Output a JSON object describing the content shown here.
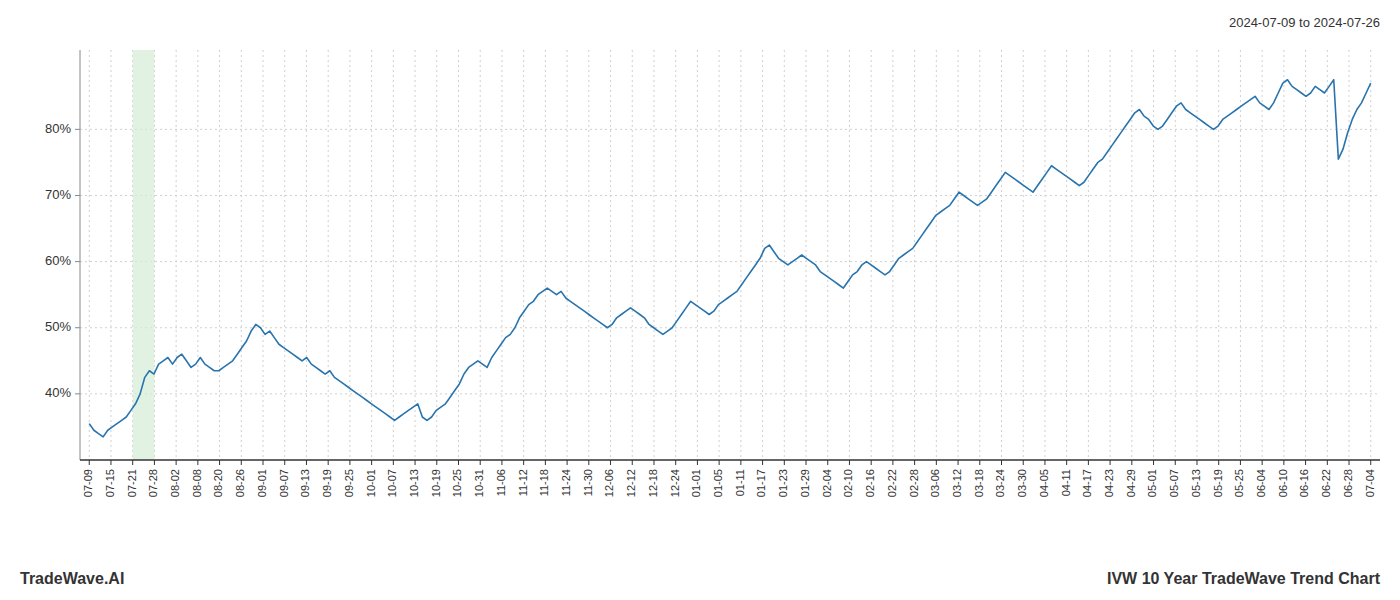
{
  "chart_data": {
    "type": "line",
    "title": "IVW 10 Year TradeWave Trend Chart",
    "subtitle": "2024-07-09 to 2024-07-26",
    "annotations": [
      "TradeWave.AI"
    ],
    "color": "#2874ae",
    "grid": true,
    "xlim": [
      -2,
      279
    ],
    "ylim": [
      30,
      92
    ],
    "yticks": [
      {
        "value": 40,
        "label": "40%"
      },
      {
        "value": 50,
        "label": "50%"
      },
      {
        "value": 60,
        "label": "60%"
      },
      {
        "value": 70,
        "label": "70%"
      },
      {
        "value": 80,
        "label": "80%"
      }
    ],
    "xticks": [
      {
        "value": 0,
        "label": "07-09"
      },
      {
        "value": 4.694915,
        "label": "07-15"
      },
      {
        "value": 9.389831,
        "label": "07-21"
      },
      {
        "value": 14.084746,
        "label": "07-28"
      },
      {
        "value": 18.779661,
        "label": "08-02"
      },
      {
        "value": 23.474576,
        "label": "08-08"
      },
      {
        "value": 28.169492,
        "label": "08-20"
      },
      {
        "value": 32.864407,
        "label": "08-26"
      },
      {
        "value": 37.559322,
        "label": "09-01"
      },
      {
        "value": 42.254237,
        "label": "09-07"
      },
      {
        "value": 46.949153,
        "label": "09-13"
      },
      {
        "value": 51.644068,
        "label": "09-19"
      },
      {
        "value": 56.338983,
        "label": "09-25"
      },
      {
        "value": 61.033898,
        "label": "10-01"
      },
      {
        "value": 65.728814,
        "label": "10-07"
      },
      {
        "value": 70.423729,
        "label": "10-13"
      },
      {
        "value": 75.118644,
        "label": "10-19"
      },
      {
        "value": 79.813559,
        "label": "10-25"
      },
      {
        "value": 84.508475,
        "label": "10-31"
      },
      {
        "value": 89.20339,
        "label": "11-06"
      },
      {
        "value": 93.898305,
        "label": "11-12"
      },
      {
        "value": 98.59322,
        "label": "11-18"
      },
      {
        "value": 103.288136,
        "label": "11-24"
      },
      {
        "value": 107.983051,
        "label": "11-30"
      },
      {
        "value": 112.677966,
        "label": "12-06"
      },
      {
        "value": 117.372881,
        "label": "12-12"
      },
      {
        "value": 122.067797,
        "label": "12-18"
      },
      {
        "value": 126.762712,
        "label": "12-24"
      },
      {
        "value": 131.457627,
        "label": "01-01"
      },
      {
        "value": 136.152542,
        "label": "01-05"
      },
      {
        "value": 140.847458,
        "label": "01-11"
      },
      {
        "value": 145.542373,
        "label": "01-17"
      },
      {
        "value": 150.237288,
        "label": "01-23"
      },
      {
        "value": 154.932203,
        "label": "01-29"
      },
      {
        "value": 159.627119,
        "label": "02-04"
      },
      {
        "value": 164.322034,
        "label": "02-10"
      },
      {
        "value": 169.016949,
        "label": "02-16"
      },
      {
        "value": 173.711864,
        "label": "02-22"
      },
      {
        "value": 178.40678,
        "label": "02-28"
      },
      {
        "value": 183.101695,
        "label": "03-06"
      },
      {
        "value": 187.79661,
        "label": "03-12"
      },
      {
        "value": 192.491525,
        "label": "03-18"
      },
      {
        "value": 197.186441,
        "label": "03-24"
      },
      {
        "value": 201.881356,
        "label": "03-30"
      },
      {
        "value": 206.576271,
        "label": "04-05"
      },
      {
        "value": 211.271186,
        "label": "04-11"
      },
      {
        "value": 215.966102,
        "label": "04-17"
      },
      {
        "value": 220.661017,
        "label": "04-23"
      },
      {
        "value": 225.355932,
        "label": "04-29"
      },
      {
        "value": 230.050847,
        "label": "05-01"
      },
      {
        "value": 234.745763,
        "label": "05-07"
      },
      {
        "value": 239.440678,
        "label": "05-13"
      },
      {
        "value": 244.135593,
        "label": "05-19"
      },
      {
        "value": 248.830508,
        "label": "05-25"
      },
      {
        "value": 253.525424,
        "label": "06-04"
      },
      {
        "value": 258.220339,
        "label": "06-10"
      },
      {
        "value": 262.915254,
        "label": "06-16"
      },
      {
        "value": 267.610169,
        "label": "06-22"
      },
      {
        "value": 272.305085,
        "label": "06-28"
      },
      {
        "value": 277,
        "label": "07-04"
      }
    ],
    "shaded_region": {
      "start": 9.389831,
      "end": 14.084746,
      "color": "#d6ecd6"
    },
    "values": [
      35.5,
      34.5,
      34.0,
      33.5,
      34.5,
      35.0,
      35.5,
      36.0,
      36.5,
      37.5,
      38.5,
      40.0,
      42.5,
      43.5,
      43.0,
      44.5,
      45.0,
      45.5,
      44.5,
      45.5,
      46.0,
      45.0,
      44.0,
      44.5,
      45.5,
      44.5,
      44.0,
      43.5,
      43.5,
      44.0,
      44.5,
      45.0,
      46.0,
      47.0,
      48.0,
      49.5,
      50.5,
      50.0,
      49.0,
      49.5,
      48.5,
      47.5,
      47.0,
      46.5,
      46.0,
      45.5,
      45.0,
      45.5,
      44.5,
      44.0,
      43.5,
      43.0,
      43.5,
      42.5,
      42.0,
      41.5,
      41.0,
      40.5,
      40.0,
      39.5,
      39.0,
      38.5,
      38.0,
      37.5,
      37.0,
      36.5,
      36.0,
      36.5,
      37.0,
      37.5,
      38.0,
      38.5,
      36.5,
      36.0,
      36.5,
      37.5,
      38.0,
      38.5,
      39.5,
      40.5,
      41.5,
      43.0,
      44.0,
      44.5,
      45.0,
      44.5,
      44.0,
      45.5,
      46.5,
      47.5,
      48.5,
      49.0,
      50.0,
      51.5,
      52.5,
      53.5,
      54.0,
      55.0,
      55.5,
      56.0,
      55.5,
      55.0,
      55.5,
      54.5,
      54.0,
      53.5,
      53.0,
      52.5,
      52.0,
      51.5,
      51.0,
      50.5,
      50.0,
      50.5,
      51.5,
      52.0,
      52.5,
      53.0,
      52.5,
      52.0,
      51.5,
      50.5,
      50.0,
      49.5,
      49.0,
      49.5,
      50.0,
      51.0,
      52.0,
      53.0,
      54.0,
      53.5,
      53.0,
      52.5,
      52.0,
      52.5,
      53.5,
      54.0,
      54.5,
      55.0,
      55.5,
      56.5,
      57.5,
      58.5,
      59.5,
      60.5,
      62.0,
      62.5,
      61.5,
      60.5,
      60.0,
      59.5,
      60.0,
      60.5,
      61.0,
      60.5,
      60.0,
      59.5,
      58.5,
      58.0,
      57.5,
      57.0,
      56.5,
      56.0,
      57.0,
      58.0,
      58.5,
      59.5,
      60.0,
      59.5,
      59.0,
      58.5,
      58.0,
      58.5,
      59.5,
      60.5,
      61.0,
      61.5,
      62.0,
      63.0,
      64.0,
      65.0,
      66.0,
      67.0,
      67.5,
      68.0,
      68.5,
      69.5,
      70.5,
      70.0,
      69.5,
      69.0,
      68.5,
      69.0,
      69.5,
      70.5,
      71.5,
      72.5,
      73.5,
      73.0,
      72.5,
      72.0,
      71.5,
      71.0,
      70.5,
      71.5,
      72.5,
      73.5,
      74.5,
      74.0,
      73.5,
      73.0,
      72.5,
      72.0,
      71.5,
      72.0,
      73.0,
      74.0,
      75.0,
      75.5,
      76.5,
      77.5,
      78.5,
      79.5,
      80.5,
      81.5,
      82.5,
      83.0,
      82.0,
      81.5,
      80.5,
      80.0,
      80.5,
      81.5,
      82.5,
      83.5,
      84.0,
      83.0,
      82.5,
      82.0,
      81.5,
      81.0,
      80.5,
      80.0,
      80.5,
      81.5,
      82.0,
      82.5,
      83.0,
      83.5,
      84.0,
      84.5,
      85.0,
      84.0,
      83.5,
      83.0,
      84.0,
      85.5,
      87.0,
      87.5,
      86.5,
      86.0,
      85.5,
      85.0,
      85.5,
      86.5,
      86.0,
      85.5,
      86.5,
      87.5,
      75.5,
      77.0,
      79.5,
      81.5,
      83.0,
      84.0,
      85.5,
      87.0
    ]
  }
}
